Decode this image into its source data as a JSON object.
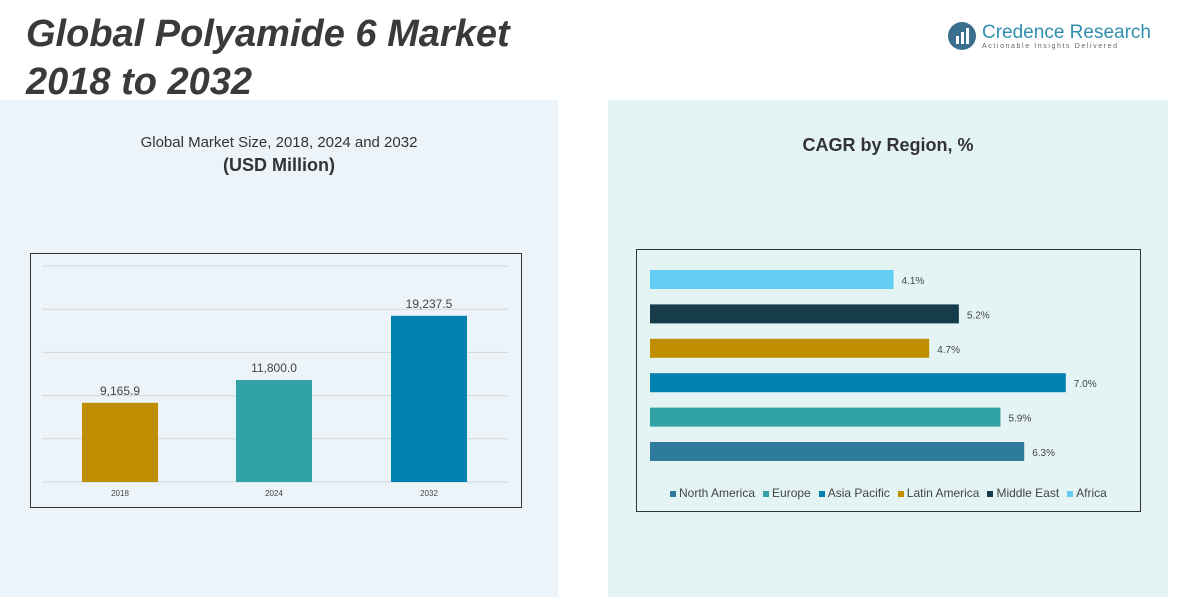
{
  "title_line1": "Global Polyamide 6 Market",
  "title_line2": "2018 to 2032",
  "logo": {
    "name": "Credence Research",
    "tagline": "Actionable Insights Delivered"
  },
  "chart_data": [
    {
      "type": "bar",
      "title": "Global Market Size, 2018, 2024 and 2032",
      "subtitle": "(USD Million)",
      "categories": [
        "2018",
        "2024",
        "2032"
      ],
      "values": [
        9165.9,
        11800.0,
        19237.5
      ],
      "labels": [
        "9,165.9",
        "11,800.0",
        "19,237.5"
      ],
      "colors": [
        "#bf8f00",
        "#31a3a5",
        "#0081b0"
      ],
      "ylim": [
        0,
        25000
      ],
      "grid": true
    },
    {
      "type": "bar",
      "orientation": "horizontal",
      "title": "CAGR by Region, %",
      "categories": [
        "Africa",
        "Middle East",
        "Latin America",
        "Asia Pacific",
        "Europe",
        "North America"
      ],
      "values": [
        4.1,
        5.2,
        4.7,
        7.0,
        5.9,
        6.3
      ],
      "labels": [
        "4.1%",
        "5.2%",
        "4.7%",
        "7.0%",
        "5.9%",
        "6.3%"
      ],
      "colors": [
        "#63cdf6",
        "#163b4b",
        "#bf8f00",
        "#0081b0",
        "#31a3a5",
        "#2e7b9b"
      ],
      "legend": [
        "North America",
        "Europe",
        "Asia Pacific",
        "Latin America",
        "Middle East",
        "Africa"
      ],
      "legend_colors": [
        "#2e7b9b",
        "#31a3a5",
        "#0081b0",
        "#bf8f00",
        "#163b4b",
        "#63cdf6"
      ],
      "legend_position": "bottom",
      "xlim": [
        0,
        7.0
      ]
    }
  ]
}
